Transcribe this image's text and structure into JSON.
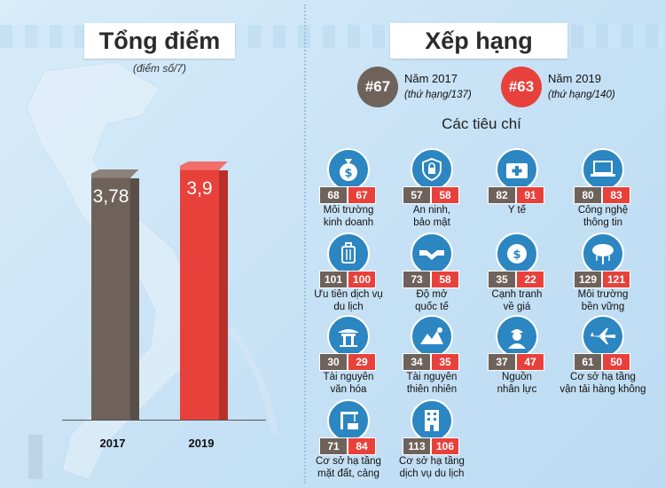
{
  "left": {
    "title": "Tổng điểm",
    "subtitle": "(điểm số/7)"
  },
  "right": {
    "title": "Xếp hạng",
    "rank2017": {
      "badge": "#67",
      "year": "Năm 2017",
      "note": "(thứ hạng/137)"
    },
    "rank2019": {
      "badge": "#63",
      "year": "Năm 2019",
      "note": "(thứ hạng/140)"
    },
    "criteria_title": "Các tiêu chí"
  },
  "colors": {
    "c2017": "#6e625a",
    "c2019": "#e8413c",
    "icon_circle": "#2b86c2"
  },
  "chart_data": [
    {
      "type": "bar",
      "title": "Tổng điểm",
      "subtitle": "(điểm số/7)",
      "categories": [
        "2017",
        "2019"
      ],
      "values": [
        3.78,
        3.9
      ],
      "value_labels": [
        "3,78",
        "3,9"
      ],
      "ylim": [
        0,
        4.4
      ],
      "colors": [
        "#6e625a",
        "#e8413c"
      ]
    },
    {
      "type": "table",
      "title": "Các tiêu chí",
      "columns": [
        "Năm 2017",
        "Năm 2019"
      ],
      "rows": [
        {
          "icon": "money-bag-icon",
          "label": [
            "Môi trường",
            "kinh doanh"
          ],
          "r2017": "68",
          "r2019": "67"
        },
        {
          "icon": "security-shield-icon",
          "label": [
            "An ninh,",
            "bảo mật"
          ],
          "r2017": "57",
          "r2019": "58"
        },
        {
          "icon": "medical-kit-icon",
          "label": [
            "Y tế"
          ],
          "r2017": "82",
          "r2019": "91"
        },
        {
          "icon": "laptop-icon",
          "label": [
            "Công nghệ",
            "thông tin"
          ],
          "r2017": "80",
          "r2019": "83"
        },
        {
          "icon": "luggage-icon",
          "label": [
            "Ưu tiên dịch vụ",
            "du lịch"
          ],
          "r2017": "101",
          "r2019": "100"
        },
        {
          "icon": "handshake-icon",
          "label": [
            "Độ mở",
            "quốc tế"
          ],
          "r2017": "73",
          "r2019": "58"
        },
        {
          "icon": "coins-icon",
          "label": [
            "Cạnh tranh",
            "về giá"
          ],
          "r2017": "35",
          "r2019": "22"
        },
        {
          "icon": "cloud-tree-icon",
          "label": [
            "Môi trường",
            "bền vững"
          ],
          "r2017": "129",
          "r2019": "121"
        },
        {
          "icon": "temple-icon",
          "label": [
            "Tài nguyên",
            "văn hóa"
          ],
          "r2017": "30",
          "r2019": "29"
        },
        {
          "icon": "landscape-icon",
          "label": [
            "Tài nguyên",
            "thiên nhiên"
          ],
          "r2017": "34",
          "r2019": "35"
        },
        {
          "icon": "worker-icon",
          "label": [
            "Nguồn",
            "nhân lực"
          ],
          "r2017": "37",
          "r2019": "47"
        },
        {
          "icon": "airplane-icon",
          "label": [
            "Cơ sở hạ tầng",
            "vận tải hàng không"
          ],
          "r2017": "61",
          "r2019": "50"
        },
        {
          "icon": "port-crane-icon",
          "label": [
            "Cơ sở hạ tầng",
            "mặt đất, cảng"
          ],
          "r2017": "71",
          "r2019": "84"
        },
        {
          "icon": "hotel-building-icon",
          "label": [
            "Cơ sở hạ tầng",
            "dịch vụ du lịch"
          ],
          "r2017": "113",
          "r2019": "106"
        }
      ]
    }
  ]
}
